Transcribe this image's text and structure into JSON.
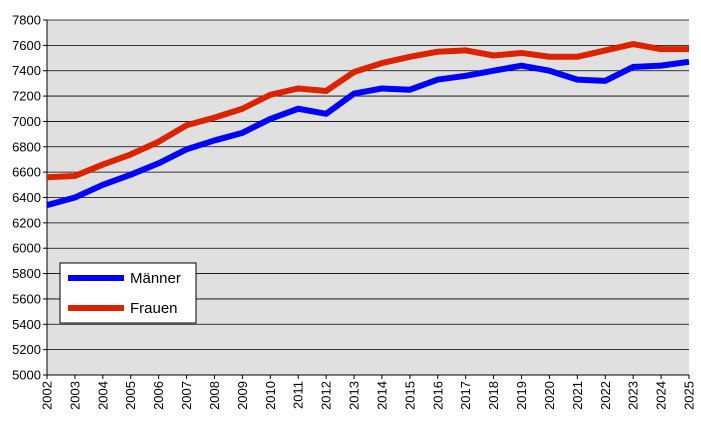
{
  "chart_data": {
    "type": "line",
    "x": [
      2002,
      2003,
      2004,
      2005,
      2006,
      2007,
      2008,
      2009,
      2010,
      2011,
      2012,
      2013,
      2014,
      2015,
      2016,
      2017,
      2018,
      2019,
      2020,
      2021,
      2022,
      2023,
      2024,
      2025
    ],
    "series": [
      {
        "name": "Männer",
        "color": "#0000ff",
        "values": [
          6340,
          6400,
          6500,
          6580,
          6670,
          6780,
          6850,
          6910,
          7020,
          7100,
          7060,
          7220,
          7260,
          7250,
          7330,
          7360,
          7400,
          7440,
          7400,
          7330,
          7320,
          7430,
          7440,
          7470
        ]
      },
      {
        "name": "Frauen",
        "color": "#dd2200",
        "values": [
          6560,
          6570,
          6660,
          6740,
          6840,
          6970,
          7030,
          7100,
          7210,
          7260,
          7240,
          7390,
          7460,
          7510,
          7550,
          7560,
          7520,
          7540,
          7510,
          7510,
          7560,
          7610,
          7570,
          7570
        ]
      }
    ],
    "xlim": [
      2002,
      2025
    ],
    "xticks": [
      2002,
      2003,
      2004,
      2005,
      2006,
      2007,
      2008,
      2009,
      2010,
      2011,
      2012,
      2013,
      2014,
      2015,
      2016,
      2017,
      2018,
      2019,
      2020,
      2021,
      2022,
      2023,
      2024,
      2025
    ],
    "ylim": [
      5000,
      7800
    ],
    "yticks": [
      5000,
      5200,
      5400,
      5600,
      5800,
      6000,
      6200,
      6400,
      6600,
      6800,
      7000,
      7200,
      7400,
      7600,
      7800
    ],
    "grid": true,
    "legend": "lower left"
  }
}
